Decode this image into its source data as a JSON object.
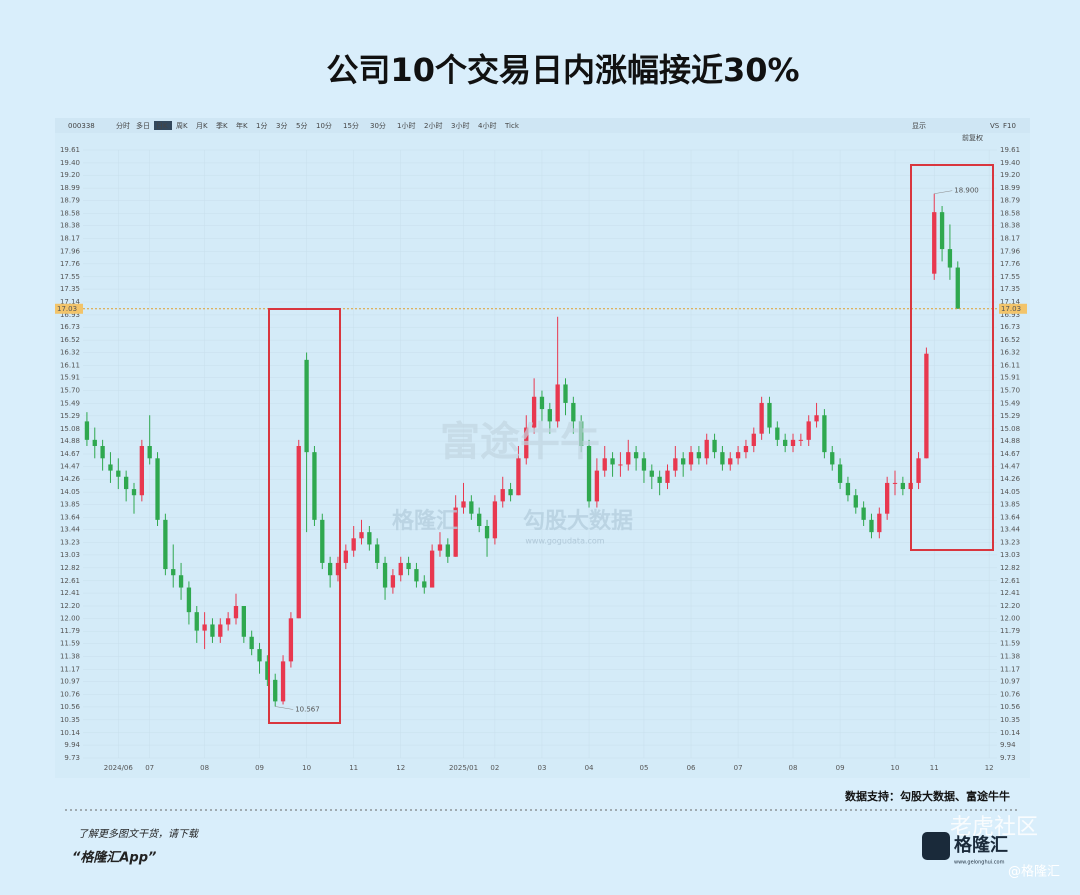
{
  "title": "公司10个交易日内涨幅接近30%",
  "toolbar": [
    "000338",
    "分时",
    "多日",
    "日K",
    "周K",
    "月K",
    "季K",
    "年K",
    "1分",
    "3分",
    "5分",
    "10分",
    "15分",
    "30分",
    "1小时",
    "2小时",
    "3小时",
    "4小时",
    "Tick"
  ],
  "toolbar_right": [
    "显示",
    "VS",
    "F10"
  ],
  "adjust": "前复权",
  "watermarks": [
    "富途牛牛",
    "格隆汇",
    "勾股大数据",
    "www.gogudata.com"
  ],
  "chart_data": {
    "type": "candlestick",
    "up_color": "#e8384f",
    "down_color": "#2fa84f",
    "candles": [
      [
        15.2,
        15.35,
        14.8,
        14.9
      ],
      [
        14.9,
        15.1,
        14.6,
        14.8
      ],
      [
        14.8,
        14.9,
        14.4,
        14.6
      ],
      [
        14.5,
        14.7,
        14.2,
        14.4
      ],
      [
        14.4,
        14.6,
        14.1,
        14.3
      ],
      [
        14.3,
        14.4,
        13.9,
        14.1
      ],
      [
        14.1,
        14.2,
        13.7,
        14.0
      ],
      [
        14.0,
        14.9,
        13.9,
        14.8
      ],
      [
        14.8,
        15.3,
        14.5,
        14.6
      ],
      [
        14.6,
        14.7,
        13.5,
        13.6
      ],
      [
        13.6,
        13.7,
        12.7,
        12.8
      ],
      [
        12.8,
        13.2,
        12.5,
        12.7
      ],
      [
        12.7,
        12.9,
        12.3,
        12.5
      ],
      [
        12.5,
        12.6,
        11.9,
        12.1
      ],
      [
        12.1,
        12.2,
        11.6,
        11.8
      ],
      [
        11.8,
        12.1,
        11.5,
        11.9
      ],
      [
        11.9,
        12.0,
        11.6,
        11.7
      ],
      [
        11.7,
        12.0,
        11.6,
        11.9
      ],
      [
        11.9,
        12.1,
        11.8,
        12.0
      ],
      [
        12.0,
        12.4,
        11.9,
        12.2
      ],
      [
        12.2,
        12.2,
        11.6,
        11.7
      ],
      [
        11.7,
        11.8,
        11.4,
        11.5
      ],
      [
        11.5,
        11.6,
        11.1,
        11.3
      ],
      [
        11.3,
        11.4,
        10.9,
        11.0
      ],
      [
        11.0,
        11.1,
        10.567,
        10.65
      ],
      [
        10.65,
        11.4,
        10.6,
        11.3
      ],
      [
        11.3,
        12.1,
        11.2,
        12.0
      ],
      [
        12.0,
        14.9,
        12.0,
        14.8
      ],
      [
        16.2,
        16.32,
        13.4,
        14.7
      ],
      [
        14.7,
        14.8,
        13.5,
        13.6
      ],
      [
        13.6,
        13.7,
        12.8,
        12.9
      ],
      [
        12.9,
        13.0,
        12.5,
        12.7
      ],
      [
        12.7,
        13.0,
        12.6,
        12.9
      ],
      [
        12.9,
        13.2,
        12.8,
        13.1
      ],
      [
        13.1,
        13.5,
        13.0,
        13.3
      ],
      [
        13.3,
        13.6,
        13.2,
        13.4
      ],
      [
        13.4,
        13.5,
        13.1,
        13.2
      ],
      [
        13.2,
        13.3,
        12.8,
        12.9
      ],
      [
        12.9,
        13.0,
        12.3,
        12.5
      ],
      [
        12.5,
        12.8,
        12.4,
        12.7
      ],
      [
        12.7,
        13.0,
        12.6,
        12.9
      ],
      [
        12.9,
        13.0,
        12.7,
        12.8
      ],
      [
        12.8,
        12.9,
        12.5,
        12.6
      ],
      [
        12.6,
        12.7,
        12.4,
        12.5
      ],
      [
        12.5,
        13.2,
        12.5,
        13.1
      ],
      [
        13.1,
        13.4,
        13.0,
        13.2
      ],
      [
        13.2,
        13.3,
        12.9,
        13.0
      ],
      [
        13.0,
        14.0,
        13.0,
        13.8
      ],
      [
        13.8,
        14.2,
        13.7,
        13.9
      ],
      [
        13.9,
        14.0,
        13.6,
        13.7
      ],
      [
        13.7,
        13.8,
        13.4,
        13.5
      ],
      [
        13.5,
        13.6,
        13.0,
        13.3
      ],
      [
        13.3,
        14.0,
        13.2,
        13.9
      ],
      [
        13.9,
        14.3,
        13.8,
        14.1
      ],
      [
        14.1,
        14.2,
        13.9,
        14.0
      ],
      [
        14.0,
        14.8,
        14.0,
        14.6
      ],
      [
        14.6,
        15.3,
        14.5,
        15.1
      ],
      [
        15.1,
        15.9,
        15.0,
        15.6
      ],
      [
        15.6,
        15.7,
        15.2,
        15.4
      ],
      [
        15.4,
        15.5,
        15.0,
        15.2
      ],
      [
        15.2,
        16.9,
        15.1,
        15.8
      ],
      [
        15.8,
        15.9,
        15.3,
        15.5
      ],
      [
        15.5,
        15.6,
        15.0,
        15.2
      ],
      [
        15.2,
        15.3,
        14.7,
        14.8
      ],
      [
        14.8,
        14.9,
        13.8,
        13.9
      ],
      [
        13.9,
        14.6,
        13.8,
        14.4
      ],
      [
        14.4,
        14.8,
        14.3,
        14.6
      ],
      [
        14.6,
        14.7,
        14.3,
        14.5
      ],
      [
        14.5,
        14.7,
        14.3,
        14.5
      ],
      [
        14.5,
        14.9,
        14.4,
        14.7
      ],
      [
        14.7,
        14.8,
        14.4,
        14.6
      ],
      [
        14.6,
        14.7,
        14.2,
        14.4
      ],
      [
        14.4,
        14.5,
        14.1,
        14.3
      ],
      [
        14.3,
        14.4,
        14.0,
        14.2
      ],
      [
        14.2,
        14.5,
        14.1,
        14.4
      ],
      [
        14.4,
        14.8,
        14.3,
        14.6
      ],
      [
        14.6,
        14.7,
        14.3,
        14.5
      ],
      [
        14.5,
        14.8,
        14.4,
        14.7
      ],
      [
        14.7,
        14.8,
        14.5,
        14.6
      ],
      [
        14.6,
        15.0,
        14.5,
        14.9
      ],
      [
        14.9,
        15.0,
        14.6,
        14.7
      ],
      [
        14.7,
        14.8,
        14.4,
        14.5
      ],
      [
        14.5,
        14.7,
        14.4,
        14.6
      ],
      [
        14.6,
        14.8,
        14.5,
        14.7
      ],
      [
        14.7,
        14.9,
        14.6,
        14.8
      ],
      [
        14.8,
        15.1,
        14.7,
        15.0
      ],
      [
        15.0,
        15.6,
        14.9,
        15.5
      ],
      [
        15.5,
        15.6,
        15.0,
        15.1
      ],
      [
        15.1,
        15.2,
        14.8,
        14.9
      ],
      [
        14.9,
        15.0,
        14.7,
        14.8
      ],
      [
        14.8,
        15.0,
        14.7,
        14.9
      ],
      [
        14.9,
        15.0,
        14.8,
        14.9
      ],
      [
        14.9,
        15.3,
        14.8,
        15.2
      ],
      [
        15.2,
        15.5,
        15.1,
        15.3
      ],
      [
        15.3,
        15.4,
        14.6,
        14.7
      ],
      [
        14.7,
        14.8,
        14.4,
        14.5
      ],
      [
        14.5,
        14.6,
        14.1,
        14.2
      ],
      [
        14.2,
        14.3,
        13.9,
        14.0
      ],
      [
        14.0,
        14.1,
        13.7,
        13.8
      ],
      [
        13.8,
        13.9,
        13.5,
        13.6
      ],
      [
        13.6,
        13.7,
        13.3,
        13.4
      ],
      [
        13.4,
        13.8,
        13.3,
        13.7
      ],
      [
        13.7,
        14.3,
        13.6,
        14.2
      ],
      [
        14.2,
        14.4,
        14.0,
        14.2
      ],
      [
        14.2,
        14.3,
        14.0,
        14.1
      ],
      [
        14.1,
        14.3,
        14.0,
        14.2
      ],
      [
        14.2,
        14.7,
        14.1,
        14.6
      ],
      [
        14.6,
        16.4,
        14.6,
        16.3
      ],
      [
        17.6,
        18.9,
        17.5,
        18.6
      ],
      [
        18.6,
        18.7,
        17.8,
        18.0
      ],
      [
        18.0,
        18.4,
        17.5,
        17.7
      ],
      [
        17.7,
        17.8,
        17.03,
        17.03
      ]
    ],
    "ylim": [
      9.73,
      19.61
    ],
    "yticks": [
      19.61,
      {
        "value": 19.4,
        "label": "19.40"
      },
      {
        "value": 19.2,
        "label": "19.20"
      },
      18.99,
      18.79,
      18.58,
      18.38,
      18.17,
      17.96,
      17.76,
      17.55,
      17.35,
      17.14,
      16.93,
      16.73,
      16.52,
      16.32,
      16.11,
      15.91,
      {
        "value": 15.7,
        "label": "15.70"
      },
      15.49,
      15.29,
      15.08,
      14.88,
      14.67,
      14.47,
      14.26,
      14.05,
      13.85,
      13.64,
      13.44,
      13.23,
      13.03,
      12.82,
      12.61,
      12.41,
      {
        "value": 12.2,
        "label": "12.20"
      },
      {
        "value": 12,
        "label": "12.00"
      },
      11.79,
      11.59,
      11.38,
      11.17,
      10.97,
      10.76,
      10.56,
      10.35,
      10.14,
      9.94,
      9.73
    ],
    "xlim": [
      -0.5,
      116
    ],
    "xticks": [
      {
        "value": 4,
        "label": "2024/06"
      },
      {
        "value": 8,
        "label": "07"
      },
      {
        "value": 15,
        "label": "08"
      },
      {
        "value": 22,
        "label": "09"
      },
      {
        "value": 28,
        "label": "10"
      },
      {
        "value": 34,
        "label": "11"
      },
      {
        "value": 40,
        "label": "12"
      },
      {
        "value": 48,
        "label": "2025/01"
      },
      {
        "value": 52,
        "label": "02"
      },
      {
        "value": 58,
        "label": "03"
      },
      {
        "value": 64,
        "label": "04"
      },
      {
        "value": 71,
        "label": "05"
      },
      {
        "value": 77,
        "label": "06"
      },
      {
        "value": 83,
        "label": "07"
      },
      {
        "value": 90,
        "label": "08"
      },
      {
        "value": 96,
        "label": "09"
      },
      {
        "value": 103,
        "label": "10"
      },
      {
        "value": 108,
        "label": "11"
      },
      {
        "value": 115,
        "label": "12"
      }
    ],
    "last_price": 17.03,
    "annotations": [
      {
        "value": 10.567,
        "index": 24
      },
      {
        "value": 18.9,
        "label": "18.900",
        "index": 108
      }
    ]
  },
  "footer": {
    "source": "数据支持：勾股大数据、富途牛牛",
    "promo": "了解更多图文干货，请下载",
    "app": "“格隆汇App”",
    "logo": "格隆汇",
    "site": "www.gelonghui.com",
    "community": "老虎社区",
    "handle": "@格隆汇"
  }
}
